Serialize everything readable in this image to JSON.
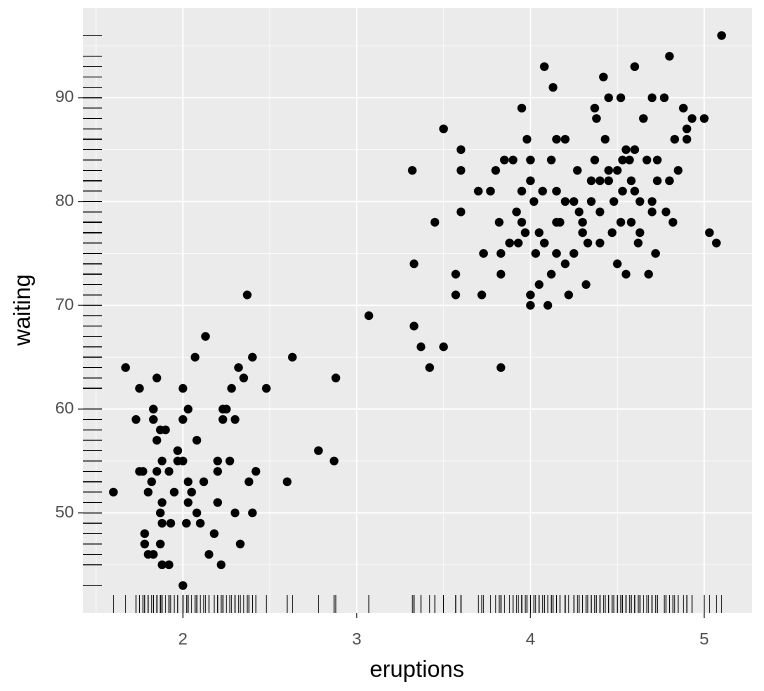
{
  "chart_data": {
    "type": "scatter",
    "x_label": "eruptions",
    "y_label": "waiting",
    "x": [
      1.6,
      1.67,
      1.73,
      1.75,
      1.75,
      1.77,
      1.78,
      1.78,
      1.8,
      1.82,
      1.83,
      1.83,
      1.83,
      1.85,
      1.85,
      1.85,
      1.87,
      1.87,
      1.88,
      1.88,
      1.88,
      1.88,
      1.9,
      1.92,
      1.93,
      1.97,
      1.97,
      2.0,
      2.0,
      2.0,
      2.0,
      2.02,
      2.03,
      2.03,
      2.03,
      2.07,
      2.08,
      2.08,
      2.12,
      2.13,
      2.15,
      2.2,
      2.2,
      2.2,
      2.22,
      2.23,
      2.23,
      2.25,
      2.27,
      2.28,
      2.3,
      2.32,
      2.33,
      2.35,
      2.37,
      2.38,
      2.4,
      2.4,
      2.42,
      2.48,
      2.6,
      2.63,
      2.78,
      2.87,
      2.88,
      3.07,
      2.1,
      1.95,
      2.18,
      2.3,
      1.8,
      1.92,
      2.05,
      1.87,
      3.32,
      3.33,
      3.33,
      3.37,
      3.42,
      3.45,
      3.5,
      3.5,
      3.57,
      3.57,
      3.6,
      3.6,
      3.6,
      3.7,
      3.72,
      3.73,
      3.77,
      3.8,
      3.82,
      3.83,
      3.83,
      3.83,
      3.85,
      3.88,
      3.9,
      3.92,
      3.93,
      3.95,
      3.95,
      3.97,
      3.98,
      4.0,
      4.0,
      4.0,
      4.0,
      4.02,
      4.03,
      4.05,
      4.07,
      4.08,
      4.08,
      4.1,
      4.12,
      4.12,
      4.13,
      4.15,
      4.15,
      4.15,
      4.17,
      4.2,
      4.2,
      4.2,
      4.22,
      4.25,
      4.27,
      4.28,
      4.3,
      4.3,
      4.32,
      4.33,
      4.35,
      4.37,
      4.37,
      4.38,
      4.4,
      4.4,
      4.42,
      4.43,
      4.45,
      4.45,
      4.47,
      4.48,
      4.5,
      4.5,
      4.52,
      4.53,
      4.55,
      4.55,
      4.57,
      4.58,
      4.6,
      4.6,
      4.6,
      4.62,
      4.63,
      4.65,
      4.67,
      4.68,
      4.7,
      4.7,
      4.72,
      4.73,
      4.77,
      4.78,
      4.8,
      4.8,
      4.82,
      4.83,
      4.85,
      4.88,
      4.9,
      4.9,
      4.93,
      5.0,
      5.03,
      5.07,
      5.1,
      4.25,
      4.45,
      4.58,
      4.35,
      4.15,
      4.52,
      4.4,
      4.63,
      4.7,
      4.05,
      3.95,
      4.53,
      4.73
    ],
    "y": [
      52,
      64,
      59,
      62,
      54,
      54,
      48,
      47,
      52,
      53,
      60,
      59,
      46,
      63,
      57,
      54,
      58,
      50,
      55,
      51,
      49,
      45,
      58,
      45,
      49,
      55,
      56,
      59,
      62,
      43,
      55,
      49,
      60,
      53,
      51,
      65,
      50,
      57,
      53,
      67,
      46,
      55,
      54,
      51,
      45,
      60,
      59,
      60,
      55,
      62,
      59,
      64,
      47,
      63,
      71,
      53,
      65,
      50,
      54,
      62,
      53,
      65,
      56,
      55,
      63,
      69,
      49,
      52,
      48,
      50,
      46,
      54,
      52,
      47,
      83,
      74,
      68,
      66,
      64,
      78,
      87,
      66,
      73,
      71,
      85,
      83,
      79,
      81,
      71,
      75,
      81,
      83,
      78,
      64,
      75,
      73,
      84,
      76,
      84,
      79,
      76,
      89,
      81,
      77,
      86,
      84,
      82,
      71,
      70,
      80,
      75,
      77,
      81,
      93,
      76,
      70,
      84,
      73,
      91,
      86,
      81,
      75,
      78,
      86,
      80,
      74,
      71,
      80,
      83,
      79,
      78,
      77,
      72,
      76,
      82,
      89,
      84,
      88,
      82,
      79,
      92,
      86,
      90,
      83,
      77,
      80,
      74,
      83,
      90,
      81,
      85,
      73,
      84,
      78,
      93,
      85,
      81,
      76,
      80,
      88,
      84,
      73,
      90,
      80,
      75,
      84,
      90,
      79,
      94,
      82,
      78,
      86,
      83,
      89,
      87,
      86,
      88,
      88,
      77,
      76,
      96,
      75,
      82,
      82,
      80,
      78,
      78,
      76,
      77,
      79,
      72,
      78,
      84,
      82
    ],
    "color": "#000000",
    "rug": true,
    "grid": true,
    "panel_color": "#ebebeb",
    "xlim": [
      1.425,
      5.275
    ],
    "xticks": [
      2,
      3,
      4,
      5
    ],
    "xminor": [
      1.5,
      2.5,
      3.5,
      4.5
    ],
    "ylim": [
      40.35,
      98.65
    ],
    "yticks": [
      50,
      60,
      70,
      80,
      90
    ],
    "yminor": [
      45,
      55,
      65,
      75,
      85,
      95
    ]
  }
}
